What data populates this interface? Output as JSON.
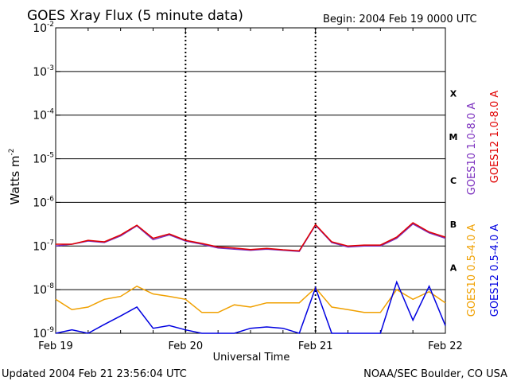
{
  "chart_data": {
    "type": "line",
    "title": "GOES Xray Flux (5 minute data)",
    "begin_label": "Begin:  2004 Feb 19 0000 UTC",
    "updated_label": "Updated 2004 Feb 21 23:56:04 UTC",
    "credit_label": "NOAA/SEC Boulder, CO USA",
    "xlabel": "Universal Time",
    "ylabel": "Watts m",
    "ylabel_exp": "-2",
    "yscale": "log",
    "ylim": [
      1e-09,
      0.01
    ],
    "xlim": [
      "2004-02-19T00:00",
      "2004-02-22T00:00"
    ],
    "x_ticks": [
      {
        "label": "Feb 19",
        "date": "2004-02-19T00:00"
      },
      {
        "label": "Feb 20",
        "date": "2004-02-20T00:00"
      },
      {
        "label": "Feb 21",
        "date": "2004-02-21T00:00"
      },
      {
        "label": "Feb 22",
        "date": "2004-02-22T00:00"
      }
    ],
    "y_ticks": [
      {
        "base": "10",
        "exp": "-2",
        "value": 0.01
      },
      {
        "base": "10",
        "exp": "-3",
        "value": 0.001
      },
      {
        "base": "10",
        "exp": "-4",
        "value": 0.0001
      },
      {
        "base": "10",
        "exp": "-5",
        "value": 1e-05
      },
      {
        "base": "10",
        "exp": "-6",
        "value": 1e-06
      },
      {
        "base": "10",
        "exp": "-7",
        "value": 1e-07
      },
      {
        "base": "10",
        "exp": "-8",
        "value": 1e-08
      },
      {
        "base": "10",
        "exp": "-9",
        "value": 1e-09
      }
    ],
    "flare_classes": [
      {
        "label": "X",
        "low": 0.0001,
        "high": 0.001
      },
      {
        "label": "M",
        "low": 1e-05,
        "high": 0.0001
      },
      {
        "label": "C",
        "low": 1e-06,
        "high": 1e-05
      },
      {
        "label": "B",
        "low": 1e-07,
        "high": 1e-06
      },
      {
        "label": "A",
        "low": 1e-08,
        "high": 1e-07
      }
    ],
    "grid": true,
    "legend_position": "right",
    "series": [
      {
        "name": "GOES10 1.0-8.0 A",
        "color": "#7b2fbe",
        "points": [
          [
            "2004-02-19T00:00",
            1e-07
          ],
          [
            "2004-02-19T03:00",
            1.1e-07
          ],
          [
            "2004-02-19T06:00",
            1.3e-07
          ],
          [
            "2004-02-19T09:00",
            1.2e-07
          ],
          [
            "2004-02-19T12:00",
            1.7e-07
          ],
          [
            "2004-02-19T15:00",
            2.9e-07
          ],
          [
            "2004-02-19T18:00",
            1.4e-07
          ],
          [
            "2004-02-19T21:00",
            1.8e-07
          ],
          [
            "2004-02-20T00:00",
            1.3e-07
          ],
          [
            "2004-02-20T03:00",
            1.1e-07
          ],
          [
            "2004-02-20T06:00",
            9e-08
          ],
          [
            "2004-02-20T09:00",
            8.5e-08
          ],
          [
            "2004-02-20T12:00",
            8e-08
          ],
          [
            "2004-02-20T15:00",
            8.5e-08
          ],
          [
            "2004-02-20T18:00",
            8e-08
          ],
          [
            "2004-02-20T21:00",
            7.5e-08
          ],
          [
            "2004-02-21T00:00",
            3e-07
          ],
          [
            "2004-02-21T03:00",
            1.2e-07
          ],
          [
            "2004-02-21T06:00",
            9.5e-08
          ],
          [
            "2004-02-21T09:00",
            1e-07
          ],
          [
            "2004-02-21T12:00",
            1e-07
          ],
          [
            "2004-02-21T15:00",
            1.5e-07
          ],
          [
            "2004-02-21T18:00",
            3.2e-07
          ],
          [
            "2004-02-21T21:00",
            2e-07
          ],
          [
            "2004-02-22T00:00",
            1.5e-07
          ]
        ]
      },
      {
        "name": "GOES12 1.0-8.0 A",
        "color": "#e00000",
        "points": [
          [
            "2004-02-19T00:00",
            1.1e-07
          ],
          [
            "2004-02-19T03:00",
            1.1e-07
          ],
          [
            "2004-02-19T06:00",
            1.35e-07
          ],
          [
            "2004-02-19T09:00",
            1.25e-07
          ],
          [
            "2004-02-19T12:00",
            1.8e-07
          ],
          [
            "2004-02-19T15:00",
            3e-07
          ],
          [
            "2004-02-19T18:00",
            1.5e-07
          ],
          [
            "2004-02-19T21:00",
            1.9e-07
          ],
          [
            "2004-02-20T00:00",
            1.35e-07
          ],
          [
            "2004-02-20T03:00",
            1.15e-07
          ],
          [
            "2004-02-20T06:00",
            9.5e-08
          ],
          [
            "2004-02-20T09:00",
            9e-08
          ],
          [
            "2004-02-20T12:00",
            8.3e-08
          ],
          [
            "2004-02-20T15:00",
            8.8e-08
          ],
          [
            "2004-02-20T18:00",
            8.2e-08
          ],
          [
            "2004-02-20T21:00",
            7.8e-08
          ],
          [
            "2004-02-21T00:00",
            3.1e-07
          ],
          [
            "2004-02-21T03:00",
            1.25e-07
          ],
          [
            "2004-02-21T06:00",
            1e-07
          ],
          [
            "2004-02-21T09:00",
            1.05e-07
          ],
          [
            "2004-02-21T12:00",
            1.05e-07
          ],
          [
            "2004-02-21T15:00",
            1.6e-07
          ],
          [
            "2004-02-21T18:00",
            3.4e-07
          ],
          [
            "2004-02-21T21:00",
            2.1e-07
          ],
          [
            "2004-02-22T00:00",
            1.6e-07
          ]
        ]
      },
      {
        "name": "GOES10 0.5-4.0 A",
        "color": "#f0a000",
        "points": [
          [
            "2004-02-19T00:00",
            6e-09
          ],
          [
            "2004-02-19T03:00",
            3.5e-09
          ],
          [
            "2004-02-19T06:00",
            4e-09
          ],
          [
            "2004-02-19T09:00",
            6e-09
          ],
          [
            "2004-02-19T12:00",
            7e-09
          ],
          [
            "2004-02-19T15:00",
            1.2e-08
          ],
          [
            "2004-02-19T18:00",
            8e-09
          ],
          [
            "2004-02-19T21:00",
            7e-09
          ],
          [
            "2004-02-20T00:00",
            6e-09
          ],
          [
            "2004-02-20T03:00",
            3e-09
          ],
          [
            "2004-02-20T06:00",
            3e-09
          ],
          [
            "2004-02-20T09:00",
            4.5e-09
          ],
          [
            "2004-02-20T12:00",
            4e-09
          ],
          [
            "2004-02-20T15:00",
            5e-09
          ],
          [
            "2004-02-20T18:00",
            5e-09
          ],
          [
            "2004-02-20T21:00",
            5e-09
          ],
          [
            "2004-02-21T00:00",
            1.1e-08
          ],
          [
            "2004-02-21T03:00",
            4e-09
          ],
          [
            "2004-02-21T06:00",
            3.5e-09
          ],
          [
            "2004-02-21T09:00",
            3e-09
          ],
          [
            "2004-02-21T12:00",
            3e-09
          ],
          [
            "2004-02-21T15:00",
            1e-08
          ],
          [
            "2004-02-21T18:00",
            6e-09
          ],
          [
            "2004-02-21T21:00",
            9e-09
          ],
          [
            "2004-02-22T00:00",
            5e-09
          ]
        ]
      },
      {
        "name": "GOES12 0.5-4.0 A",
        "color": "#0000e0",
        "points": [
          [
            "2004-02-19T00:00",
            1e-09
          ],
          [
            "2004-02-19T03:00",
            1.2e-09
          ],
          [
            "2004-02-19T06:00",
            1e-09
          ],
          [
            "2004-02-19T09:00",
            1.6e-09
          ],
          [
            "2004-02-19T12:00",
            2.5e-09
          ],
          [
            "2004-02-19T15:00",
            4e-09
          ],
          [
            "2004-02-19T18:00",
            1.3e-09
          ],
          [
            "2004-02-19T21:00",
            1.5e-09
          ],
          [
            "2004-02-20T00:00",
            1.2e-09
          ],
          [
            "2004-02-20T03:00",
            1e-09
          ],
          [
            "2004-02-20T06:00",
            1e-09
          ],
          [
            "2004-02-20T09:00",
            1e-09
          ],
          [
            "2004-02-20T12:00",
            1.3e-09
          ],
          [
            "2004-02-20T15:00",
            1.4e-09
          ],
          [
            "2004-02-20T18:00",
            1.3e-09
          ],
          [
            "2004-02-20T21:00",
            1e-09
          ],
          [
            "2004-02-21T00:00",
            1.1e-08
          ],
          [
            "2004-02-21T03:00",
            1e-09
          ],
          [
            "2004-02-21T06:00",
            1e-09
          ],
          [
            "2004-02-21T09:00",
            1e-09
          ],
          [
            "2004-02-21T12:00",
            1e-09
          ],
          [
            "2004-02-21T15:00",
            1.5e-08
          ],
          [
            "2004-02-21T18:00",
            2e-09
          ],
          [
            "2004-02-21T21:00",
            1.2e-08
          ],
          [
            "2004-02-22T00:00",
            1.5e-09
          ]
        ]
      }
    ]
  }
}
